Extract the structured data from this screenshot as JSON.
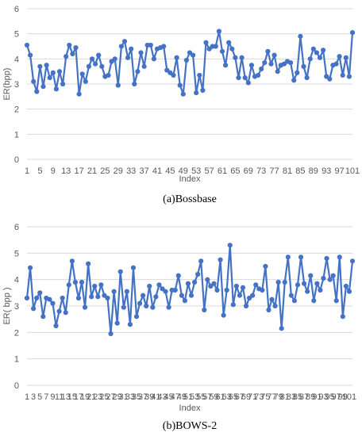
{
  "chart_data": [
    {
      "type": "line",
      "caption": "(a)Bossbase",
      "xlabel": "Index",
      "ylabel": "ER(bpp)",
      "ylim": [
        0,
        6
      ],
      "yticks": [
        "0",
        "1",
        "2",
        "3",
        "4",
        "5",
        "6"
      ],
      "xticks": [
        "1",
        "5",
        "9",
        "13",
        "17",
        "21",
        "25",
        "29",
        "33",
        "37",
        "41",
        "45",
        "49",
        "53",
        "57",
        "61",
        "65",
        "69",
        "73",
        "77",
        "81",
        "85",
        "89",
        "93",
        "97",
        "101"
      ],
      "grid": true,
      "color": "#4472c4",
      "x_start": 1,
      "values": [
        4.55,
        4.15,
        3.1,
        2.7,
        3.7,
        2.9,
        3.75,
        3.25,
        3.45,
        2.8,
        3.5,
        3.0,
        4.1,
        4.55,
        4.2,
        4.45,
        2.6,
        3.4,
        3.1,
        3.7,
        4.0,
        3.8,
        4.15,
        3.7,
        3.3,
        3.35,
        3.9,
        4.0,
        2.95,
        4.5,
        4.7,
        4.05,
        4.4,
        3.0,
        3.5,
        4.25,
        3.7,
        4.55,
        4.55,
        4.0,
        4.4,
        4.45,
        4.5,
        3.55,
        3.45,
        3.35,
        4.05,
        2.95,
        2.6,
        3.95,
        4.25,
        4.15,
        2.65,
        3.35,
        2.75,
        4.65,
        4.4,
        4.5,
        4.5,
        5.1,
        4.3,
        3.75,
        4.65,
        4.4,
        4.05,
        3.25,
        4.05,
        3.25,
        3.05,
        3.75,
        3.3,
        3.35,
        3.6,
        3.85,
        4.3,
        3.8,
        4.15,
        3.5,
        3.75,
        3.8,
        3.9,
        3.85,
        3.15,
        3.45,
        4.9,
        3.7,
        3.25,
        4.0,
        4.4,
        4.25,
        4.05,
        4.35,
        3.3,
        3.2,
        3.75,
        3.8,
        4.1,
        3.35,
        4.05,
        3.3,
        5.05
      ]
    },
    {
      "type": "line",
      "caption": "(b)BOWS-2",
      "xlabel": "Index",
      "ylabel": "ER( bpp )",
      "ylim": [
        0,
        6
      ],
      "yticks": [
        "0",
        "1",
        "2",
        "3",
        "4",
        "5",
        "6"
      ],
      "xticks": [
        "1",
        "3",
        "5",
        "7",
        "9",
        "11",
        "13",
        "15",
        "17",
        "19",
        "21",
        "23",
        "25",
        "27",
        "29",
        "31",
        "33",
        "35",
        "37",
        "39",
        "41",
        "43",
        "45",
        "47",
        "49",
        "51",
        "53",
        "55",
        "57",
        "59",
        "61",
        "63",
        "65",
        "67",
        "69",
        "71",
        "73",
        "75",
        "77",
        "79",
        "81",
        "83",
        "85",
        "87",
        "89",
        "91",
        "93",
        "95",
        "97",
        "99",
        "101"
      ],
      "grid": true,
      "color": "#4472c4",
      "x_start": 1,
      "values": [
        3.3,
        4.45,
        2.9,
        3.3,
        3.5,
        2.6,
        3.3,
        3.25,
        3.1,
        2.25,
        2.8,
        3.3,
        2.75,
        3.8,
        4.7,
        3.9,
        3.3,
        3.9,
        2.95,
        4.6,
        3.35,
        3.75,
        3.35,
        3.8,
        3.4,
        3.3,
        1.95,
        3.55,
        2.35,
        4.3,
        2.95,
        3.55,
        2.3,
        4.45,
        2.6,
        3.1,
        3.4,
        3.0,
        3.75,
        2.95,
        3.35,
        3.8,
        3.65,
        3.55,
        2.95,
        3.6,
        3.6,
        4.15,
        3.4,
        3.2,
        3.85,
        3.4,
        3.9,
        4.2,
        4.7,
        2.85,
        4.0,
        3.75,
        3.85,
        3.6,
        4.75,
        2.65,
        3.6,
        5.3,
        3.05,
        3.75,
        3.4,
        3.7,
        3.0,
        3.3,
        3.4,
        3.8,
        3.65,
        3.6,
        4.5,
        2.85,
        3.25,
        3.0,
        3.9,
        2.15,
        3.9,
        4.85,
        3.4,
        3.2,
        3.8,
        4.85,
        3.85,
        3.55,
        4.15,
        3.2,
        3.85,
        3.6,
        4.05,
        4.8,
        4.0,
        4.15,
        3.2,
        4.85,
        2.6,
        3.75,
        3.55,
        4.7
      ]
    }
  ]
}
